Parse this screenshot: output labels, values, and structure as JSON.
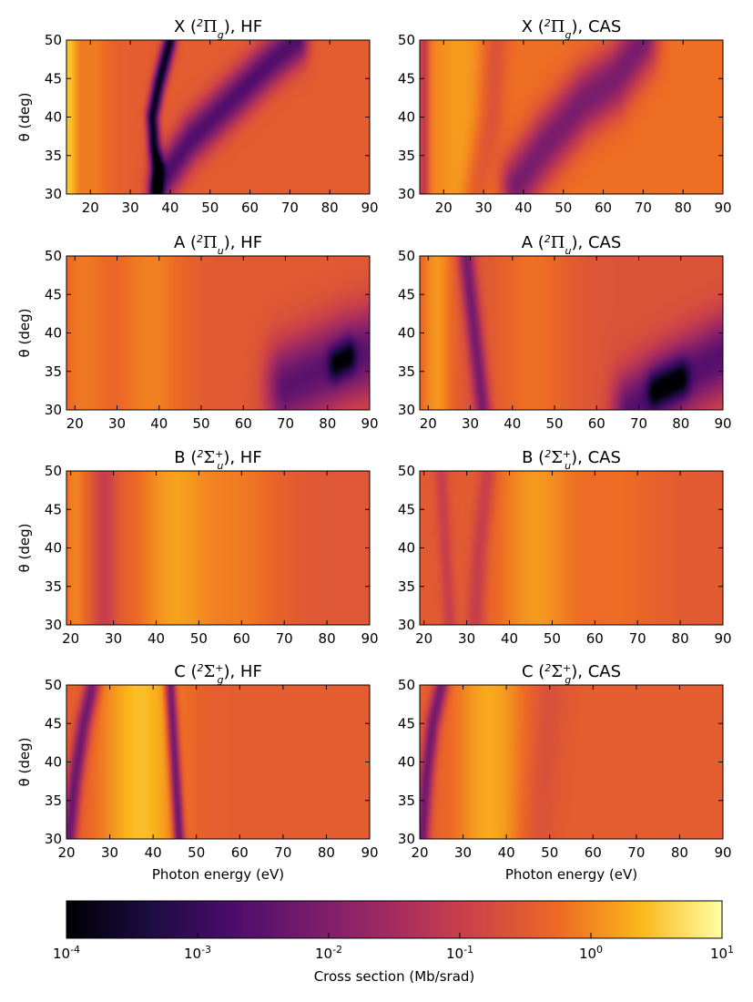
{
  "figure": {
    "colorbar": {
      "label": "Cross section (Mb/srad)",
      "scale": "log",
      "range": [
        0.0001,
        10
      ],
      "tick_exponents": [
        "-4",
        "-3",
        "-2",
        "-1",
        "0",
        "1"
      ],
      "tick_base": "10",
      "colormap": "inferno"
    },
    "xlabel": "Photon energy (eV)",
    "ylabel": "θ (deg)"
  },
  "chart_data": [
    {
      "type": "heatmap",
      "title_prefix": "X (",
      "title_state": "2",
      "title_sym": "Π",
      "title_sub": "g",
      "title_sup": "",
      "title_suffix": "), HF",
      "xlim": [
        14,
        90
      ],
      "ylim": [
        30,
        50
      ],
      "xticks": [
        "20",
        "30",
        "40",
        "50",
        "60",
        "70",
        "80",
        "90"
      ],
      "yticks": [
        "30",
        "35",
        "40",
        "45",
        "50"
      ],
      "background_log10": -0.45,
      "features": [
        {
          "kind": "band",
          "x": 14.5,
          "width": 2.0,
          "log10": 0.5
        },
        {
          "kind": "band",
          "x": 20,
          "width": 5.0,
          "log10": -0.05
        },
        {
          "kind": "dip",
          "points": [
            [
              36.5,
              30
            ],
            [
              37,
              33
            ],
            [
              36,
              36
            ],
            [
              35.5,
              40
            ],
            [
              37,
              44
            ],
            [
              40,
              50
            ]
          ],
          "width": 1.4,
          "depth": -3.4
        },
        {
          "kind": "dip",
          "points": [
            [
              37,
              31
            ],
            [
              45,
              37
            ],
            [
              55,
              42
            ],
            [
              65,
              47
            ],
            [
              72,
              50
            ]
          ],
          "width": 2.5,
          "depth": -2.2
        }
      ]
    },
    {
      "type": "heatmap",
      "title_prefix": "X (",
      "title_state": "2",
      "title_sym": "Π",
      "title_sub": "g",
      "title_sup": "",
      "title_suffix": "), CAS",
      "xlim": [
        14,
        90
      ],
      "ylim": [
        30,
        50
      ],
      "xticks": [
        "20",
        "30",
        "40",
        "50",
        "60",
        "70",
        "80",
        "90"
      ],
      "yticks": [
        "30",
        "35",
        "40",
        "45",
        "50"
      ],
      "background_log10": -0.2,
      "features": [
        {
          "kind": "dip",
          "points": [
            [
              15,
              30
            ],
            [
              15,
              50
            ]
          ],
          "width": 1.2,
          "depth": -1.0
        },
        {
          "kind": "band",
          "x": 24,
          "width": 7.0,
          "log10": 0.2
        },
        {
          "kind": "dip",
          "points": [
            [
              28,
              30
            ],
            [
              30,
              35
            ],
            [
              32,
              40
            ],
            [
              33,
              50
            ]
          ],
          "width": 3.0,
          "depth": -0.5
        },
        {
          "kind": "dip",
          "points": [
            [
              38,
              31
            ],
            [
              45,
              36
            ],
            [
              55,
              42
            ],
            [
              63,
              45
            ],
            [
              70,
              50
            ]
          ],
          "width": 3.5,
          "depth": -1.9
        }
      ]
    },
    {
      "type": "heatmap",
      "title_prefix": "A (",
      "title_state": "2",
      "title_sym": "Π",
      "title_sub": "u",
      "title_sup": "",
      "title_suffix": "), HF",
      "xlim": [
        18,
        90
      ],
      "ylim": [
        30,
        50
      ],
      "xticks": [
        "20",
        "30",
        "40",
        "50",
        "60",
        "70",
        "80",
        "90"
      ],
      "yticks": [
        "30",
        "35",
        "40",
        "45",
        "50"
      ],
      "background_log10": -0.5,
      "features": [
        {
          "kind": "band",
          "x": 22,
          "width": 6.0,
          "log10": -0.1
        },
        {
          "kind": "band",
          "x": 38,
          "width": 8.0,
          "log10": 0.0
        },
        {
          "kind": "dip",
          "points": [
            [
              70,
              33
            ],
            [
              78,
              35
            ],
            [
              84,
              36.5
            ],
            [
              90,
              37.5
            ]
          ],
          "width": 4.5,
          "depth": -2.0
        },
        {
          "kind": "dip",
          "points": [
            [
              82,
              36
            ],
            [
              85,
              37
            ]
          ],
          "width": 1.8,
          "depth": -1.6
        }
      ]
    },
    {
      "type": "heatmap",
      "title_prefix": "A (",
      "title_state": "2",
      "title_sym": "Π",
      "title_sub": "u",
      "title_sup": "",
      "title_suffix": "), CAS",
      "xlim": [
        18,
        90
      ],
      "ylim": [
        30,
        50
      ],
      "xticks": [
        "20",
        "30",
        "40",
        "50",
        "60",
        "70",
        "80",
        "90"
      ],
      "yticks": [
        "30",
        "35",
        "40",
        "45",
        "50"
      ],
      "background_log10": -0.6,
      "features": [
        {
          "kind": "band",
          "x": 22,
          "width": 4.0,
          "log10": 0.2
        },
        {
          "kind": "dip",
          "points": [
            [
              33,
              30
            ],
            [
              32,
              35
            ],
            [
              31,
              40
            ],
            [
              29,
              50
            ]
          ],
          "width": 1.8,
          "depth": -1.6
        },
        {
          "kind": "band",
          "x": 45,
          "width": 9.0,
          "log10": -0.15
        },
        {
          "kind": "dip",
          "points": [
            [
              68,
              30
            ],
            [
              76,
              33
            ],
            [
              83,
              35
            ],
            [
              90,
              37
            ]
          ],
          "width": 4.0,
          "depth": -2.0
        },
        {
          "kind": "dip",
          "points": [
            [
              74,
              32.5
            ],
            [
              80,
              34
            ]
          ],
          "width": 2.0,
          "depth": -1.6
        }
      ]
    },
    {
      "type": "heatmap",
      "title_prefix": "B (",
      "title_state": "2",
      "title_sym": "Σ",
      "title_sub": "u",
      "title_sup": "+",
      "title_suffix": "), HF",
      "xlim": [
        19,
        90
      ],
      "ylim": [
        30,
        50
      ],
      "xticks": [
        "20",
        "30",
        "40",
        "50",
        "60",
        "70",
        "80",
        "90"
      ],
      "yticks": [
        "30",
        "35",
        "40",
        "45",
        "50"
      ],
      "background_log10": -0.55,
      "features": [
        {
          "kind": "dip",
          "points": [
            [
              28,
              30
            ],
            [
              28,
              50
            ]
          ],
          "width": 2.5,
          "depth": -0.5
        },
        {
          "kind": "band",
          "x": 21,
          "width": 3.0,
          "log10": 0.0
        },
        {
          "kind": "band",
          "x": 44,
          "width": 9.0,
          "log10": 0.25
        },
        {
          "kind": "band",
          "x": 60,
          "width": 10.0,
          "log10": -0.1
        }
      ]
    },
    {
      "type": "heatmap",
      "title_prefix": "B (",
      "title_state": "2",
      "title_sym": "Σ",
      "title_sub": "u",
      "title_sup": "+",
      "title_suffix": "), CAS",
      "xlim": [
        19,
        90
      ],
      "ylim": [
        30,
        50
      ],
      "xticks": [
        "20",
        "30",
        "40",
        "50",
        "60",
        "70",
        "80",
        "90"
      ],
      "yticks": [
        "30",
        "35",
        "40",
        "45",
        "50"
      ],
      "background_log10": -0.5,
      "features": [
        {
          "kind": "dip",
          "points": [
            [
              26,
              30
            ],
            [
              25,
              40
            ],
            [
              24,
              50
            ]
          ],
          "width": 1.5,
          "depth": -0.5
        },
        {
          "kind": "dip",
          "points": [
            [
              32,
              30
            ],
            [
              33,
              40
            ],
            [
              35,
              50
            ]
          ],
          "width": 2.0,
          "depth": -0.6
        },
        {
          "kind": "band",
          "x": 46,
          "width": 9.0,
          "log10": 0.2
        },
        {
          "kind": "band",
          "x": 65,
          "width": 10.0,
          "log10": -0.2
        }
      ]
    },
    {
      "type": "heatmap",
      "title_prefix": "C (",
      "title_state": "2",
      "title_sym": "Σ",
      "title_sub": "g",
      "title_sup": "+",
      "title_suffix": "), HF",
      "xlim": [
        20,
        90
      ],
      "ylim": [
        30,
        50
      ],
      "xticks": [
        "20",
        "30",
        "40",
        "50",
        "60",
        "70",
        "80",
        "90"
      ],
      "yticks": [
        "30",
        "35",
        "40",
        "45",
        "50"
      ],
      "background_log10": -0.45,
      "features": [
        {
          "kind": "band",
          "x": 37,
          "width": 9.0,
          "log10": 0.55
        },
        {
          "kind": "dip",
          "points": [
            [
              20.5,
              30
            ],
            [
              22,
              38
            ],
            [
              24,
              45
            ],
            [
              26,
              50
            ]
          ],
          "width": 1.6,
          "depth": -1.9
        },
        {
          "kind": "dip",
          "points": [
            [
              46,
              30
            ],
            [
              45.5,
              35
            ],
            [
              45,
              40
            ],
            [
              44,
              50
            ]
          ],
          "width": 1.2,
          "depth": -2.2
        }
      ]
    },
    {
      "type": "heatmap",
      "title_prefix": "C (",
      "title_state": "2",
      "title_sym": "Σ",
      "title_sub": "g",
      "title_sup": "+",
      "title_suffix": "), CAS",
      "xlim": [
        20,
        90
      ],
      "ylim": [
        30,
        50
      ],
      "xticks": [
        "20",
        "30",
        "40",
        "50",
        "60",
        "70",
        "80",
        "90"
      ],
      "yticks": [
        "30",
        "35",
        "40",
        "45",
        "50"
      ],
      "background_log10": -0.45,
      "features": [
        {
          "kind": "band",
          "x": 36,
          "width": 8.0,
          "log10": 0.35
        },
        {
          "kind": "dip",
          "points": [
            [
              20.5,
              30
            ],
            [
              21.5,
              38
            ],
            [
              23,
              45
            ],
            [
              25,
              50
            ]
          ],
          "width": 1.5,
          "depth": -1.8
        },
        {
          "kind": "dip",
          "points": [
            [
              47,
              30
            ],
            [
              50,
              50
            ]
          ],
          "width": 4.0,
          "depth": -0.25
        }
      ]
    }
  ]
}
